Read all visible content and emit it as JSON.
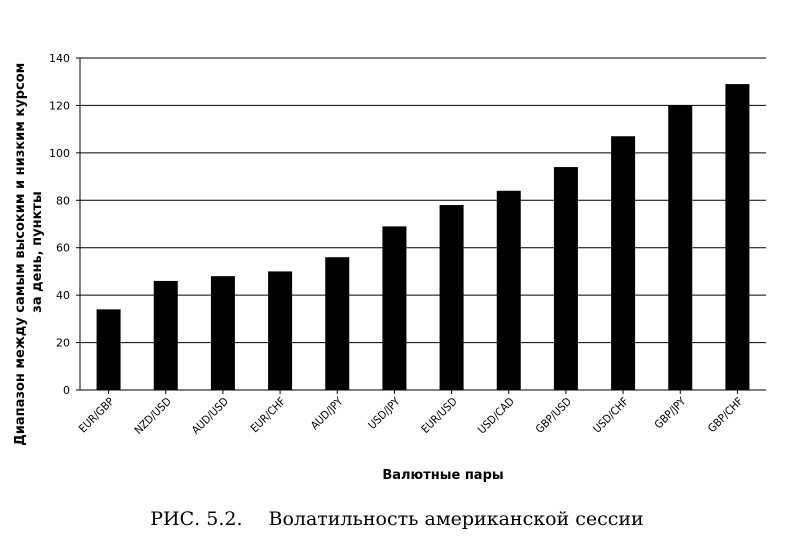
{
  "chart_data": {
    "type": "bar",
    "categories": [
      "EUR/GBP",
      "NZD/USD",
      "AUD/USD",
      "EUR/CHF",
      "AUD/JPY",
      "USD/JPY",
      "EUR/USD",
      "USD/CAD",
      "GBP/USD",
      "USD/CHF",
      "GBP/JPY",
      "GBP/CHF"
    ],
    "values": [
      34,
      46,
      48,
      50,
      56,
      69,
      78,
      84,
      94,
      107,
      120,
      129
    ],
    "xlabel": "Валютные пары",
    "ylabel_lines": [
      "Диапазон между самым высоким и низким курсом",
      "за день, пункты"
    ],
    "ylim": [
      0,
      140
    ],
    "yticks": [
      0,
      20,
      40,
      60,
      80,
      100,
      120,
      140
    ],
    "grid": true,
    "bar_color": "#000000"
  },
  "caption": {
    "figure": "РИС. 5.2.",
    "text": "Волатильность американской сессии"
  }
}
